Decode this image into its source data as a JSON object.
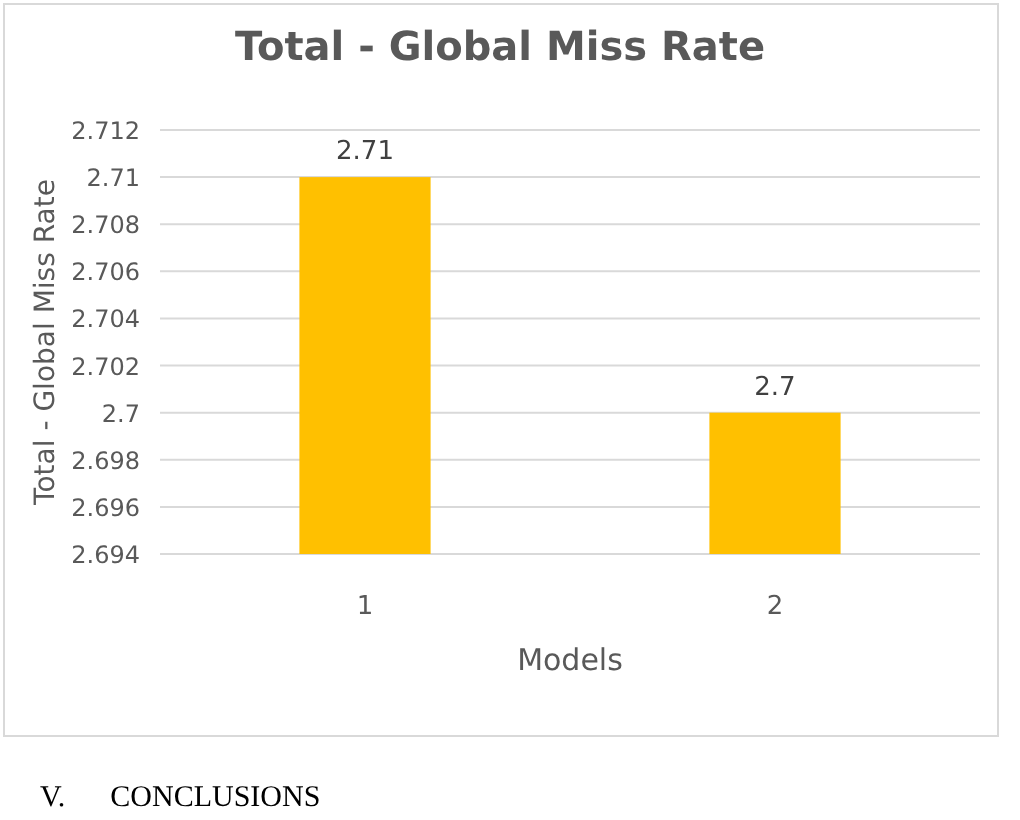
{
  "chart_data": {
    "type": "bar",
    "title": "Total - Global Miss Rate",
    "xlabel": "Models",
    "ylabel": "Total - Global Miss Rate",
    "categories": [
      "1",
      "2"
    ],
    "values": [
      2.71,
      2.7
    ],
    "color": "#ffc000",
    "data_labels": true,
    "ylim": [
      2.694,
      2.712
    ],
    "yticks": [
      2.694,
      2.696,
      2.698,
      2.7,
      2.702,
      2.704,
      2.706,
      2.708,
      2.71,
      2.712
    ],
    "grid": "y",
    "annotations": [
      "V.      CONCLUSIONS"
    ]
  }
}
